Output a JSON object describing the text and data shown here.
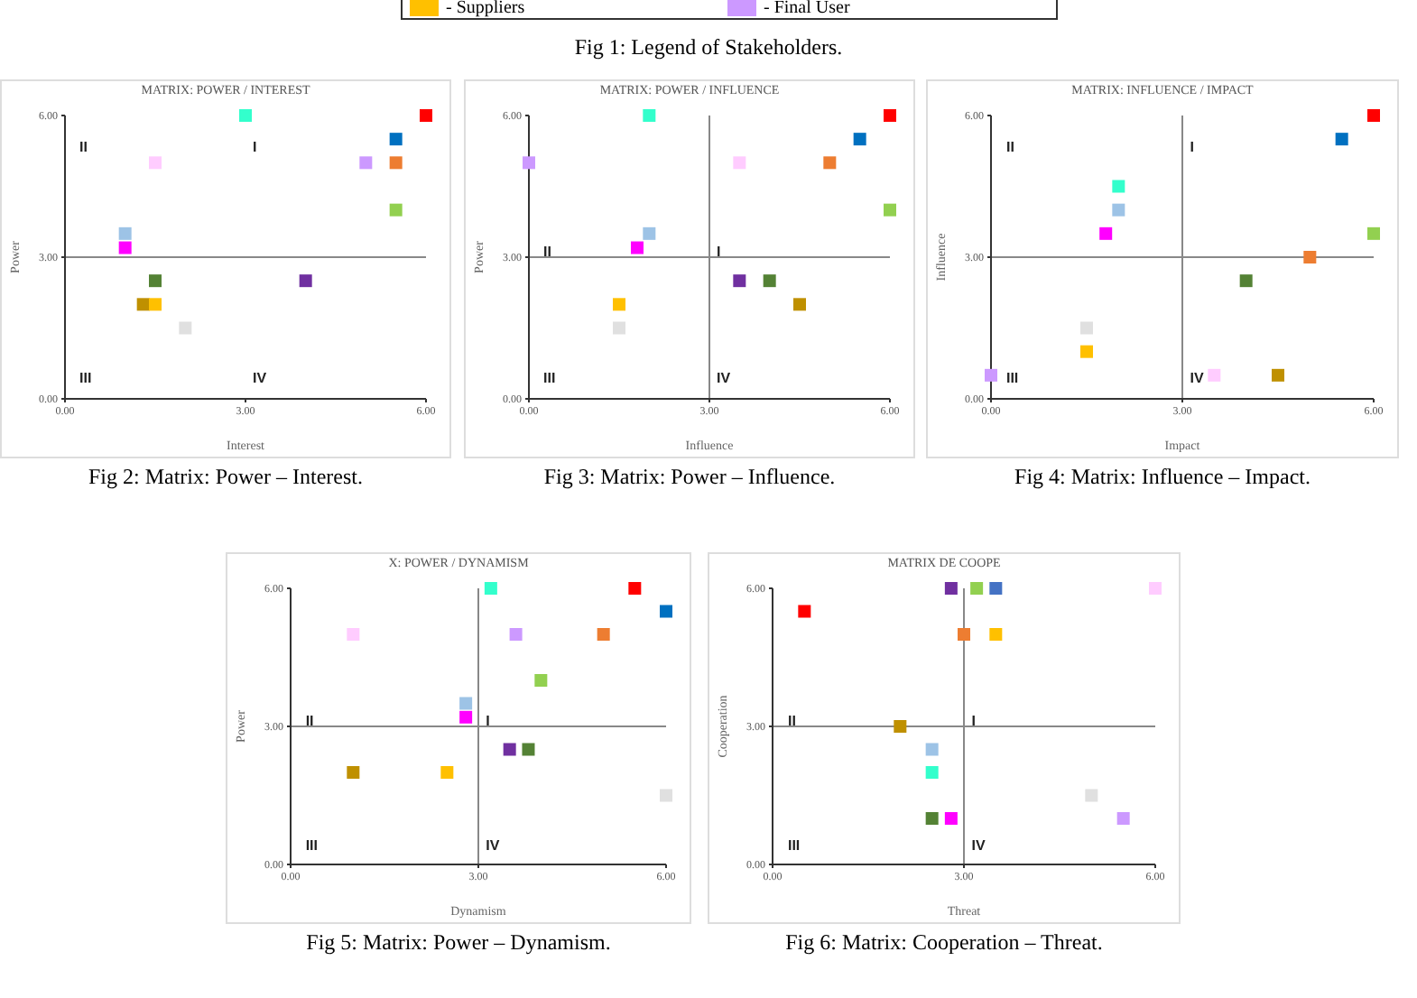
{
  "chart_data": [
    {
      "type": "other",
      "annotations": [
        "- Suppliers",
        "- Final User",
        "Fig 1: Legend of Stakeholders."
      ],
      "colors": [
        "#ffc000",
        "#cc99ff"
      ]
    },
    {
      "type": "scatter",
      "title": "MATRIX: POWER / INTEREST",
      "xlabel": "Interest",
      "ylabel": "Power",
      "marker": "square",
      "grid": false,
      "x": [
        3.0,
        6.0,
        5.5,
        1.5,
        5.0,
        5.5,
        5.5,
        1.0,
        1.0,
        1.5,
        4.0,
        1.3,
        1.5,
        2.0
      ],
      "values": [
        6.0,
        6.0,
        5.5,
        5.0,
        5.0,
        5.0,
        4.0,
        3.5,
        3.2,
        2.5,
        2.5,
        2.0,
        2.0,
        1.5
      ],
      "colors": [
        "#33ffcc",
        "#ff0000",
        "#0070c0",
        "#ffccff",
        "#cc99ff",
        "#ed7d31",
        "#92d050",
        "#9dc3e6",
        "#ff00ff",
        "#548235",
        "#7030a0",
        "#bf9000",
        "#ffc000",
        "#e0e0e0"
      ],
      "xlim": [
        0,
        6
      ],
      "ylim": [
        0,
        6
      ],
      "xticks": [
        {
          "value": 0,
          "label": "0.00"
        },
        {
          "value": 3,
          "label": "3.00"
        },
        {
          "value": 6,
          "label": "6.00"
        }
      ],
      "yticks": [
        {
          "value": 0,
          "label": "0.00"
        },
        {
          "value": 3,
          "label": "3.00"
        },
        {
          "value": 6,
          "label": "6.00"
        }
      ],
      "ref_lines": [
        {
          "axis": "y",
          "value": 3
        }
      ],
      "annotations": [
        "II",
        "I",
        "III",
        "IV",
        "Fig 2: Matrix: Power – Interest."
      ]
    },
    {
      "type": "scatter",
      "title": "MATRIX: POWER / INFLUENCE",
      "xlabel": "Influence",
      "ylabel": "Power",
      "marker": "square",
      "grid": false,
      "x": [
        2.0,
        6.0,
        5.5,
        0.0,
        3.5,
        5.0,
        6.0,
        2.0,
        1.8,
        3.5,
        4.0,
        1.5,
        4.5,
        1.5
      ],
      "values": [
        6.0,
        6.0,
        5.5,
        5.0,
        5.0,
        5.0,
        4.0,
        3.5,
        3.2,
        2.5,
        2.5,
        2.0,
        2.0,
        1.5
      ],
      "colors": [
        "#33ffcc",
        "#ff0000",
        "#0070c0",
        "#cc99ff",
        "#ffccff",
        "#ed7d31",
        "#92d050",
        "#9dc3e6",
        "#ff00ff",
        "#7030a0",
        "#548235",
        "#ffc000",
        "#bf9000",
        "#e0e0e0"
      ],
      "xlim": [
        0,
        6
      ],
      "ylim": [
        0,
        6
      ],
      "xticks": [
        {
          "value": 0,
          "label": "0.00"
        },
        {
          "value": 3,
          "label": "3.00"
        },
        {
          "value": 6,
          "label": "6.00"
        }
      ],
      "yticks": [
        {
          "value": 0,
          "label": "0.00"
        },
        {
          "value": 3,
          "label": "3.00"
        },
        {
          "value": 6,
          "label": "6.00"
        }
      ],
      "ref_lines": [
        {
          "axis": "x",
          "value": 3
        },
        {
          "axis": "y",
          "value": 3
        }
      ],
      "annotations": [
        "II",
        "I",
        "III",
        "IV",
        "Fig 3: Matrix: Power – Influence."
      ]
    },
    {
      "type": "scatter",
      "title": "MATRIX: INFLUENCE / IMPACT",
      "xlabel": "Impact",
      "ylabel": "Influence",
      "marker": "square",
      "grid": false,
      "x": [
        6.0,
        5.5,
        2.0,
        2.0,
        1.8,
        6.0,
        5.0,
        4.0,
        1.5,
        1.5,
        0.0,
        3.5,
        4.5
      ],
      "values": [
        6.0,
        5.5,
        4.5,
        4.0,
        3.5,
        3.5,
        3.0,
        2.5,
        1.5,
        1.0,
        0.5,
        0.5,
        0.5
      ],
      "colors": [
        "#ff0000",
        "#0070c0",
        "#33ffcc",
        "#9dc3e6",
        "#ff00ff",
        "#92d050",
        "#ed7d31",
        "#548235",
        "#e0e0e0",
        "#ffc000",
        "#cc99ff",
        "#ffccff",
        "#bf9000"
      ],
      "xlim": [
        0,
        6
      ],
      "ylim": [
        0,
        6
      ],
      "xticks": [
        {
          "value": 0,
          "label": "0.00"
        },
        {
          "value": 3,
          "label": "3.00"
        },
        {
          "value": 6,
          "label": "6.00"
        }
      ],
      "yticks": [
        {
          "value": 0,
          "label": "0.00"
        },
        {
          "value": 3,
          "label": "3.00"
        },
        {
          "value": 6,
          "label": "6.00"
        }
      ],
      "ref_lines": [
        {
          "axis": "x",
          "value": 3
        },
        {
          "axis": "y",
          "value": 3
        }
      ],
      "annotations": [
        "II",
        "I",
        "III",
        "IV",
        "Fig 4: Matrix: Influence – Impact."
      ]
    },
    {
      "type": "scatter",
      "title": "X: POWER / DYNAMISM",
      "xlabel": "Dynamism",
      "ylabel": "Power",
      "marker": "square",
      "grid": false,
      "x": [
        3.2,
        5.5,
        6.0,
        1.0,
        3.6,
        5.0,
        4.0,
        2.8,
        2.8,
        3.5,
        3.8,
        1.0,
        2.5,
        6.0
      ],
      "values": [
        6.0,
        6.0,
        5.5,
        5.0,
        5.0,
        5.0,
        4.0,
        3.5,
        3.2,
        2.5,
        2.5,
        2.0,
        2.0,
        1.5
      ],
      "colors": [
        "#33ffcc",
        "#ff0000",
        "#0070c0",
        "#ffccff",
        "#cc99ff",
        "#ed7d31",
        "#92d050",
        "#9dc3e6",
        "#ff00ff",
        "#7030a0",
        "#548235",
        "#bf9000",
        "#ffc000",
        "#e0e0e0"
      ],
      "xlim": [
        0,
        6
      ],
      "ylim": [
        0,
        6
      ],
      "xticks": [
        {
          "value": 0,
          "label": "0.00"
        },
        {
          "value": 3,
          "label": "3.00"
        },
        {
          "value": 6,
          "label": "6.00"
        }
      ],
      "yticks": [
        {
          "value": 0,
          "label": "0.00"
        },
        {
          "value": 3,
          "label": "3.00"
        },
        {
          "value": 6,
          "label": "6.00"
        }
      ],
      "ref_lines": [
        {
          "axis": "x",
          "value": 3
        },
        {
          "axis": "y",
          "value": 3
        }
      ],
      "annotations": [
        "II",
        "I",
        "III",
        "IV",
        "Fig 5: Matrix: Power – Dynamism."
      ]
    },
    {
      "type": "scatter",
      "title": "MATRIX DE COOPE",
      "xlabel": "Threat",
      "ylabel": "Cooperation",
      "marker": "square",
      "grid": false,
      "x": [
        2.8,
        3.2,
        3.5,
        6.0,
        0.5,
        3.0,
        3.5,
        2.0,
        2.5,
        2.5,
        5.0,
        2.5,
        2.8,
        5.5
      ],
      "values": [
        6.0,
        6.0,
        6.0,
        6.0,
        5.5,
        5.0,
        5.0,
        3.0,
        2.5,
        2.0,
        1.5,
        1.0,
        1.0,
        1.0
      ],
      "colors": [
        "#7030a0",
        "#92d050",
        "#4472c4",
        "#ffccff",
        "#ff0000",
        "#ed7d31",
        "#ffc000",
        "#bf9000",
        "#9dc3e6",
        "#33ffcc",
        "#e0e0e0",
        "#548235",
        "#ff00ff",
        "#cc99ff"
      ],
      "xlim": [
        0,
        6
      ],
      "ylim": [
        0,
        6
      ],
      "xticks": [
        {
          "value": 0,
          "label": "0.00"
        },
        {
          "value": 3,
          "label": "3.00"
        },
        {
          "value": 6,
          "label": "6.00"
        }
      ],
      "yticks": [
        {
          "value": 0,
          "label": "0.00"
        },
        {
          "value": 3,
          "label": "3.00"
        },
        {
          "value": 6,
          "label": "6.00"
        }
      ],
      "ref_lines": [
        {
          "axis": "x",
          "value": 3
        },
        {
          "axis": "y",
          "value": 3
        }
      ],
      "annotations": [
        "II",
        "I",
        "III",
        "IV",
        "Fig 6: Matrix: Cooperation – Threat."
      ]
    }
  ]
}
